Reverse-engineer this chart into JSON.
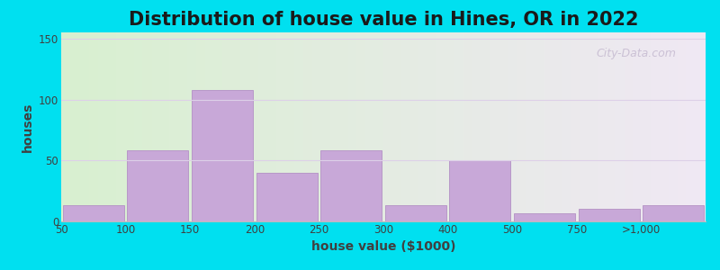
{
  "title": "Distribution of house value in Hines, OR in 2022",
  "xlabel": "house value ($1000)",
  "ylabel": "houses",
  "bar_labels": [
    "50",
    "100",
    "150",
    "200",
    "250",
    "300",
    "400",
    "500",
    "750",
    ">1,000"
  ],
  "bar_heights": [
    13,
    58,
    108,
    40,
    58,
    13,
    50,
    7,
    10,
    13
  ],
  "bar_color": "#c8a8d8",
  "bar_edgecolor": "#b898c8",
  "ylim": [
    0,
    155
  ],
  "yticks": [
    0,
    50,
    100,
    150
  ],
  "bg_color_top_left": "#d8f0d0",
  "bg_color_bottom_right": "#f0e8f4",
  "outer_bg": "#00e0f0",
  "title_fontsize": 15,
  "axis_label_fontsize": 10,
  "tick_fontsize": 8.5,
  "watermark_text": "City-Data.com",
  "grid_color": "#ddd0e8",
  "axis_label_color": "#404040",
  "n_bars": 10,
  "bar_gap": 0.05
}
